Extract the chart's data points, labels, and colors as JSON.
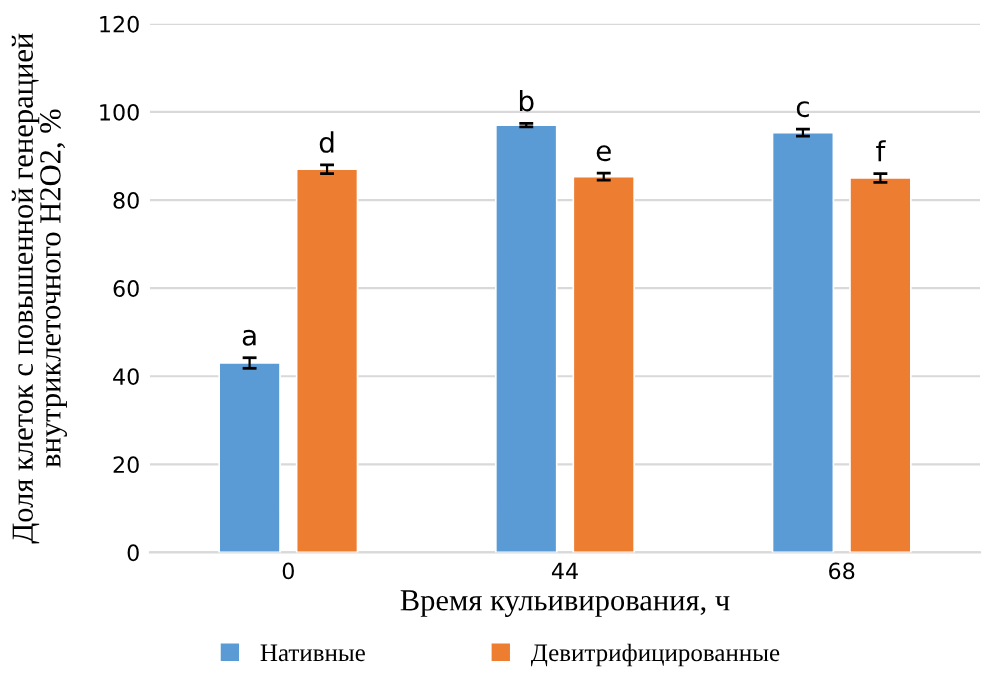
{
  "chart_data": {
    "type": "bar",
    "xlabel": "Время кульивирования, ч",
    "ylabel": "Доля клеток с повышенной генерацией внутриклеточного H2O2, %",
    "categories": [
      "0",
      "44",
      "68"
    ],
    "series": [
      {
        "name": "Нативные",
        "color": "#5b9bd5",
        "values": [
          43,
          97,
          95.3
        ],
        "errors": [
          1.2,
          0.4,
          0.8
        ],
        "value_labels": [
          "a",
          "b",
          "c"
        ]
      },
      {
        "name": "Девитрифицированные",
        "color": "#ed7d31",
        "values": [
          87,
          85.3,
          85
        ],
        "errors": [
          1.0,
          0.8,
          1.0
        ],
        "value_labels": [
          "d",
          "e",
          "f"
        ]
      }
    ],
    "ylim": [
      0,
      120
    ],
    "yticks": [
      0,
      20,
      40,
      60,
      80,
      100,
      120
    ],
    "grid": "y",
    "legend": "bottom"
  }
}
